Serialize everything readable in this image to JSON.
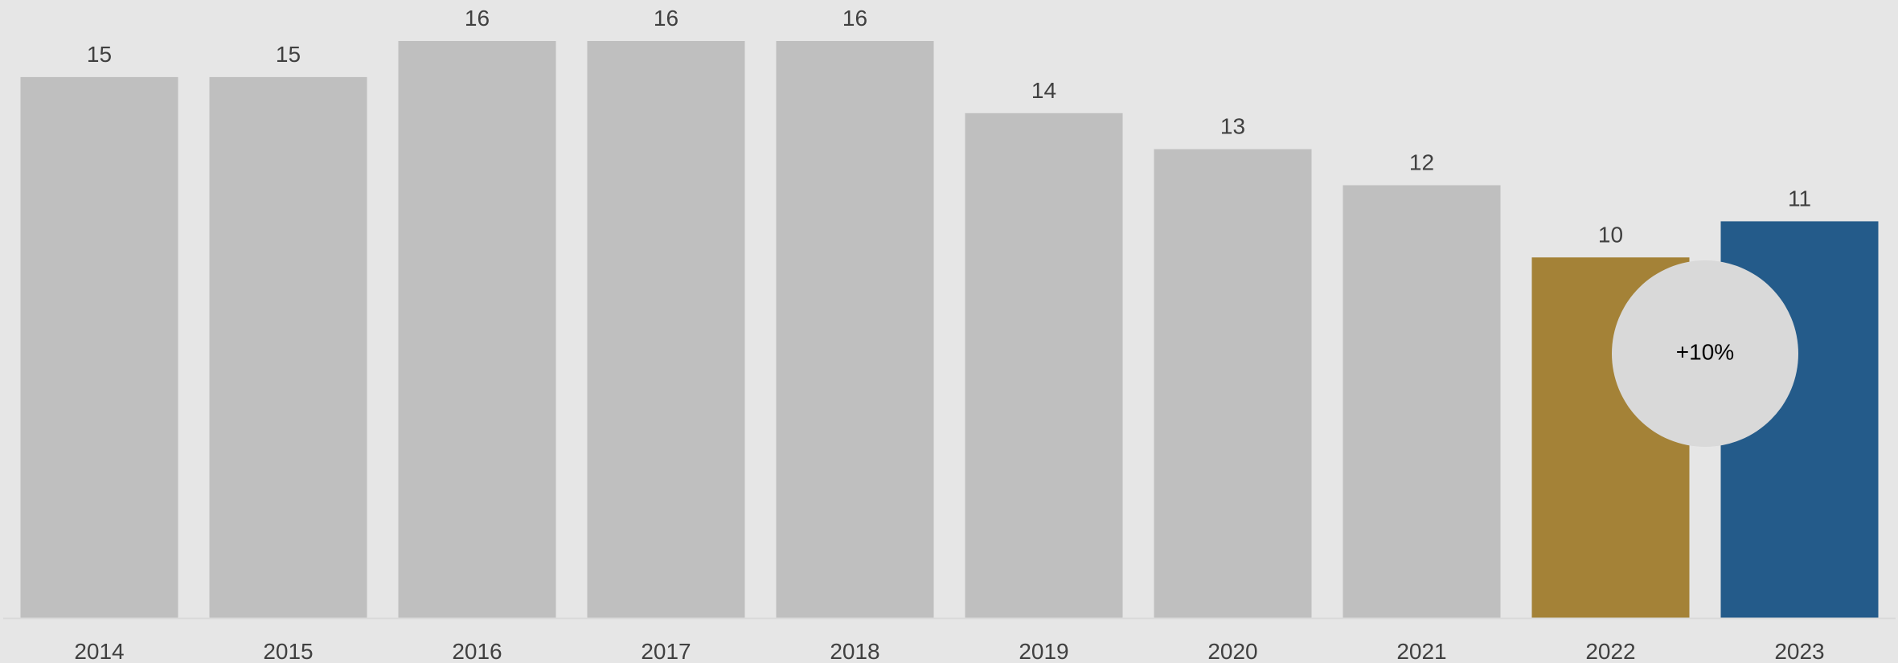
{
  "chart_data": {
    "type": "bar",
    "title": "",
    "xlabel": "",
    "ylabel": "",
    "categories": [
      "2014",
      "2015",
      "2016",
      "2017",
      "2018",
      "2019",
      "2020",
      "2021",
      "2022",
      "2023"
    ],
    "values": [
      15,
      15,
      16,
      16,
      16,
      14,
      13,
      12,
      10,
      11
    ],
    "value_labels": [
      "15",
      "15",
      "16",
      "16",
      "16",
      "14",
      "13",
      "12",
      "10",
      "11"
    ],
    "ylim": [
      0,
      16
    ],
    "grid": false,
    "legend": "none",
    "colors": {
      "default": "#bfbfbf",
      "highlight_2022": "#a48237",
      "highlight_2023": "#245b8a",
      "background": "#e6e6e6",
      "axis": "#d9d9d9",
      "badge": "#d9d9d9"
    },
    "bar_colors": [
      "#bfbfbf",
      "#bfbfbf",
      "#bfbfbf",
      "#bfbfbf",
      "#bfbfbf",
      "#bfbfbf",
      "#bfbfbf",
      "#bfbfbf",
      "#a48237",
      "#245b8a"
    ],
    "annotation": {
      "text": "+10%",
      "between": [
        "2022",
        "2023"
      ]
    }
  }
}
